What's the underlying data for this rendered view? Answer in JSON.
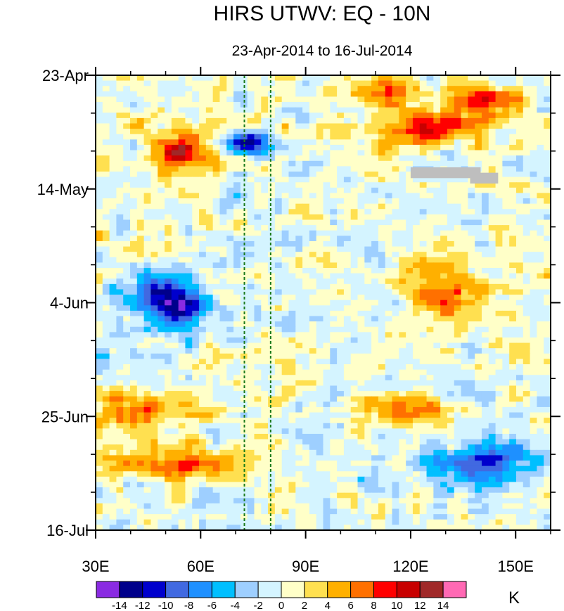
{
  "chart_data": {
    "type": "heatmap",
    "title": "HIRS UTWV: EQ - 10N",
    "subtitle": "23-Apr-2014 to 16-Jul-2014",
    "x_axis": {
      "min": 30,
      "max": 160,
      "ticks": [
        30,
        60,
        90,
        120,
        150
      ],
      "tick_labels": [
        "30E",
        "60E",
        "90E",
        "120E",
        "150E"
      ]
    },
    "y_axis": {
      "min_day": 0,
      "max_day": 84,
      "ticks": [
        0,
        21,
        42,
        63,
        84
      ],
      "tick_labels": [
        "23-Apr",
        "14-May",
        "4-Jun",
        "25-Jun",
        "16-Jul"
      ]
    },
    "reference_lines_lon": [
      72.5,
      80
    ],
    "missing_data_regions": [
      {
        "lon": [
          120,
          140
        ],
        "day": [
          17,
          19
        ]
      },
      {
        "lon": [
          137,
          145
        ],
        "day": [
          18,
          20
        ]
      }
    ],
    "colorbar": {
      "unit": "K",
      "levels": [
        -14,
        -12,
        -10,
        -8,
        -6,
        -4,
        -2,
        0,
        2,
        4,
        6,
        8,
        10,
        12,
        14
      ],
      "colors": [
        "#8a2be2",
        "#00008b",
        "#0000cd",
        "#4169e1",
        "#1e90ff",
        "#00bfff",
        "#9ecfff",
        "#d4f4ff",
        "#ffffc8",
        "#ffe050",
        "#ffb000",
        "#ff7000",
        "#ff0000",
        "#c80000",
        "#a02828",
        "#ff69b4"
      ]
    },
    "anomaly_features": [
      {
        "lon": 55,
        "day": 14,
        "amp": 11,
        "slon": 6,
        "sday": 3
      },
      {
        "lon": 73,
        "day": 12.5,
        "amp": -13,
        "slon": 4,
        "sday": 1.5
      },
      {
        "lon": 125,
        "day": 10,
        "amp": 10,
        "slon": 12,
        "sday": 2
      },
      {
        "lon": 140,
        "day": 5,
        "amp": 8,
        "slon": 10,
        "sday": 2
      },
      {
        "lon": 112,
        "day": 3,
        "amp": 7,
        "slon": 6,
        "sday": 2
      },
      {
        "lon": 45,
        "day": 40,
        "amp": -9,
        "slon": 8,
        "sday": 3
      },
      {
        "lon": 55,
        "day": 43,
        "amp": -10,
        "slon": 6,
        "sday": 3
      },
      {
        "lon": 130,
        "day": 40,
        "amp": 7,
        "slon": 7,
        "sday": 4
      },
      {
        "lon": 42,
        "day": 62,
        "amp": 7,
        "slon": 12,
        "sday": 2.5
      },
      {
        "lon": 50,
        "day": 72,
        "amp": 8,
        "slon": 13,
        "sday": 2
      },
      {
        "lon": 140,
        "day": 72,
        "amp": -9,
        "slon": 13,
        "sday": 3
      },
      {
        "lon": 120,
        "day": 62,
        "amp": 6,
        "slon": 10,
        "sday": 2
      }
    ]
  }
}
